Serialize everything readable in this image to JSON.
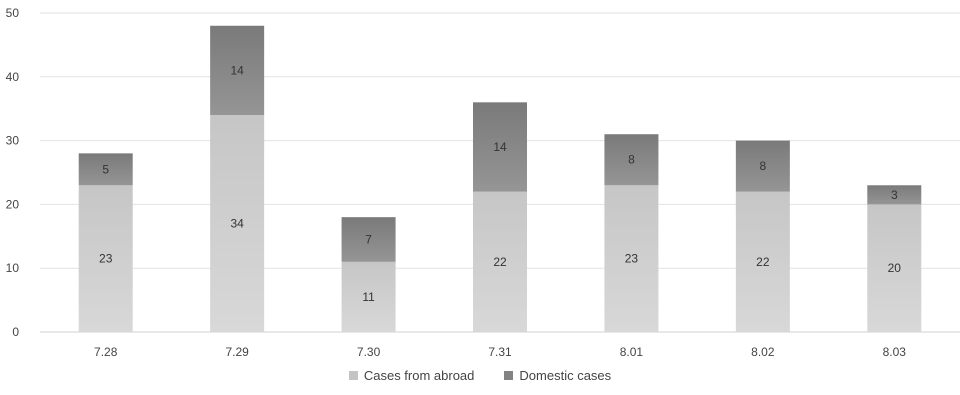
{
  "chart_data": {
    "type": "bar",
    "stacked": true,
    "categories": [
      "7.28",
      "7.29",
      "7.30",
      "7.31",
      "8.01",
      "8.02",
      "8.03"
    ],
    "series": [
      {
        "name": "Cases from abroad",
        "values": [
          23,
          34,
          11,
          22,
          23,
          22,
          20
        ],
        "color": "#c4c4c4"
      },
      {
        "name": "Domestic cases",
        "values": [
          5,
          14,
          7,
          14,
          8,
          8,
          3
        ],
        "color": "#838383"
      }
    ],
    "ylim": [
      0,
      50
    ],
    "yticks": [
      "0",
      "10",
      "20",
      "30",
      "40",
      "50"
    ],
    "grid": true,
    "legend_position": "bottom-center",
    "title": "",
    "xlabel": "",
    "ylabel": ""
  }
}
